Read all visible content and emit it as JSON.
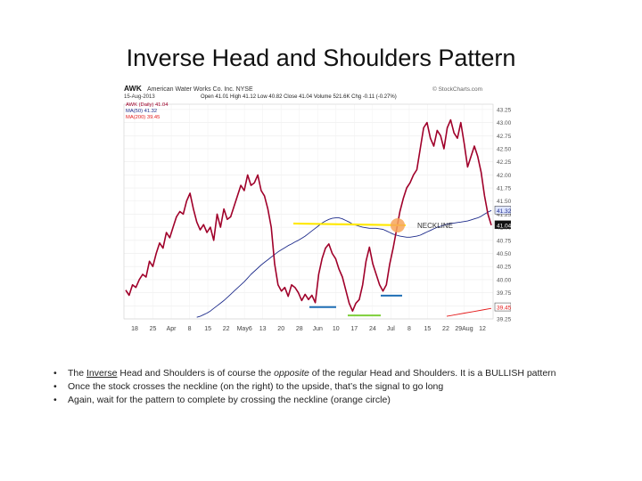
{
  "slide": {
    "title": "Inverse Head and Shoulders Pattern"
  },
  "chart_header": {
    "symbol": "AWK",
    "company": "American Water Works Co. Inc. NYSE",
    "source": "© StockCharts.com",
    "date": "15-Aug-2013",
    "ohlc": "Open 41.01  High 41.12  Low 40.82  Close 41.04  Volume 521.6K  Chg -0.11 (-0.27%)",
    "legend_price": "AWK (Daily) 41.04",
    "legend_ma50": "MA(50) 41.32",
    "legend_ma200": "MA(200) 39.45"
  },
  "annotations": {
    "neckline": "NECKLINE",
    "last_price_tag": "41.04",
    "ma50_tag": "41.32",
    "ma200_tag": "39.45"
  },
  "colors": {
    "price": "#a0002a",
    "ma50": "#1c2a8a",
    "ma200": "#e41a1a",
    "neckline": "#ffe800",
    "breakout_circle": "#f7a55a",
    "shoulders": "#1f6fb5",
    "head": "#7ecf3a"
  },
  "chart_data": {
    "type": "line",
    "ylim": [
      39.25,
      43.35
    ],
    "yticks": [
      43.25,
      43.0,
      42.75,
      42.5,
      42.25,
      42.0,
      41.75,
      41.5,
      41.25,
      41.0,
      40.75,
      40.5,
      40.25,
      40.0,
      39.75,
      39.5,
      39.25
    ],
    "xticks": [
      "18",
      "25",
      "Apr",
      "8",
      "15",
      "22",
      "May6",
      "13",
      "20",
      "28",
      "Jun",
      "10",
      "17",
      "24",
      "Jul",
      "8",
      "15",
      "22",
      "29Aug",
      "12"
    ],
    "series": [
      {
        "name": "AWK (Daily)",
        "values": [
          39.8,
          39.7,
          39.9,
          39.85,
          40.0,
          40.1,
          40.05,
          40.35,
          40.25,
          40.5,
          40.7,
          40.6,
          40.9,
          40.8,
          41.0,
          41.2,
          41.3,
          41.25,
          41.5,
          41.65,
          41.35,
          41.1,
          40.95,
          41.05,
          40.9,
          41.0,
          40.75,
          41.25,
          41.0,
          41.35,
          41.15,
          41.2,
          41.4,
          41.6,
          41.8,
          41.7,
          42.0,
          41.8,
          41.85,
          42.0,
          41.7,
          41.6,
          41.35,
          41.0,
          40.3,
          39.9,
          39.78,
          39.85,
          39.68,
          39.9,
          39.85,
          39.75,
          39.6,
          39.72,
          39.62,
          39.7,
          39.56,
          40.1,
          40.4,
          40.6,
          40.68,
          40.5,
          40.4,
          40.2,
          40.05,
          39.8,
          39.55,
          39.4,
          39.55,
          39.62,
          39.9,
          40.35,
          40.62,
          40.3,
          40.1,
          39.9,
          39.78,
          39.9,
          40.3,
          40.6,
          40.95,
          41.3,
          41.55,
          41.75,
          41.85,
          42.0,
          42.1,
          42.5,
          42.9,
          43.0,
          42.7,
          42.55,
          42.85,
          42.75,
          42.5,
          42.9,
          43.05,
          42.8,
          42.7,
          43.0,
          42.6,
          42.15,
          42.35,
          42.55,
          42.35,
          42.05,
          41.6,
          41.25,
          41.04
        ]
      },
      {
        "name": "MA(50)",
        "values": [
          39.28,
          39.3,
          39.33,
          39.36,
          39.4,
          39.45,
          39.5,
          39.55,
          39.6,
          39.66,
          39.72,
          39.78,
          39.84,
          39.9,
          39.96,
          40.03,
          40.1,
          40.16,
          40.22,
          40.28,
          40.33,
          40.38,
          40.43,
          40.48,
          40.53,
          40.57,
          40.61,
          40.65,
          40.68,
          40.72,
          40.75,
          40.79,
          40.83,
          40.88,
          40.93,
          40.98,
          41.03,
          41.08,
          41.12,
          41.15,
          41.17,
          41.18,
          41.18,
          41.16,
          41.13,
          41.1,
          41.06,
          41.04,
          41.02,
          41.0,
          40.99,
          40.98,
          40.98,
          40.98,
          40.97,
          40.96,
          40.93,
          40.9,
          40.87,
          40.85,
          40.83,
          40.82,
          40.81,
          40.81,
          40.82,
          40.83,
          40.85,
          40.88,
          40.91,
          40.94,
          40.97,
          41.0,
          41.02,
          41.04,
          41.06,
          41.07,
          41.08,
          41.09,
          41.1,
          41.11,
          41.12,
          41.14,
          41.16,
          41.18,
          41.21,
          41.25,
          41.29,
          41.32
        ]
      },
      {
        "name": "MA(200)",
        "values": [
          39.3,
          39.33,
          39.36,
          39.39,
          39.42,
          39.45
        ]
      }
    ],
    "neckline_level": 41.02,
    "left_shoulder_low": 39.56,
    "head_low": 39.4,
    "right_shoulder_low": 39.78
  },
  "bullets": [
    {
      "pre": "The ",
      "em1": "Inverse",
      "mid": " Head and Shoulders is of course the ",
      "em2": "opposite",
      "post": " of the regular Head and Shoulders.  It is a BULLISH pattern"
    },
    {
      "text": "Once the stock crosses the neckline (on the right) to the upside, that’s the signal to go long"
    },
    {
      "text": "Again, wait for the pattern to complete by crossing the neckline (orange circle)"
    }
  ],
  "bullet_mark": "•"
}
